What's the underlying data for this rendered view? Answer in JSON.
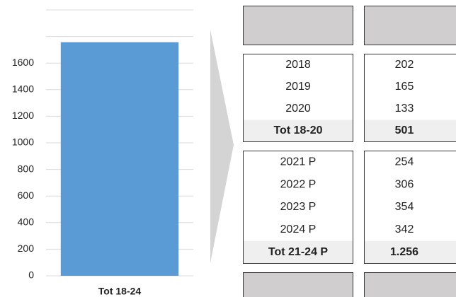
{
  "chart_data": {
    "type": "bar",
    "categories": [
      "Tot 18-24"
    ],
    "values": [
      1757
    ],
    "color": "#5b9bd5",
    "ylim": [
      0,
      2000
    ],
    "yticks": [
      0,
      200,
      400,
      600,
      800,
      1000,
      1200,
      1400,
      1600
    ],
    "gridlines": [
      0,
      200,
      400,
      600,
      800,
      1000,
      1200,
      1400,
      1600,
      1800,
      2000
    ],
    "grid": true
  },
  "table": {
    "groups": [
      {
        "rows": [
          [
            "2018",
            "202"
          ],
          [
            "2019",
            "165"
          ],
          [
            "2020",
            "133"
          ]
        ],
        "total": [
          "Tot 18-20",
          "501"
        ]
      },
      {
        "rows": [
          [
            "2021 P",
            "254"
          ],
          [
            "2022 P",
            "306"
          ],
          [
            "2023 P",
            "354"
          ],
          [
            "2024 P",
            "342"
          ]
        ],
        "total": [
          "Tot 21-24 P",
          "1.256"
        ]
      }
    ]
  }
}
